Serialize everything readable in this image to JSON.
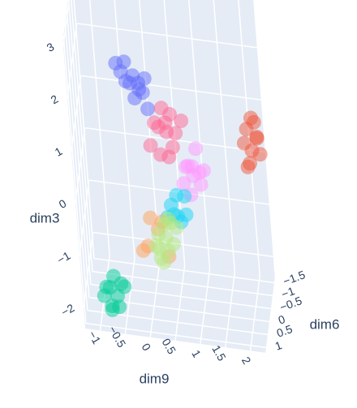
{
  "chart_data": {
    "type": "scatter3d",
    "xlabel": "dim9",
    "ylabel": "dim6",
    "zlabel": "dim3",
    "xlim": [
      -1.3,
      2.3
    ],
    "ylim": [
      -1.7,
      1.2
    ],
    "zlim": [
      -2.4,
      3.1
    ],
    "xticks": [
      {
        "value": -1,
        "label": "−1"
      },
      {
        "value": -0.5,
        "label": "−0.5"
      },
      0,
      0.5,
      1,
      1.5,
      2
    ],
    "yticks": [
      {
        "value": -1.5,
        "label": "−1.5"
      },
      {
        "value": -1,
        "label": "−1"
      },
      {
        "value": -0.5,
        "label": "−0.5"
      },
      0,
      0.5,
      1
    ],
    "zticks": [
      {
        "value": -2,
        "label": "−2"
      },
      {
        "value": -1,
        "label": "−1"
      },
      0,
      1,
      2,
      3
    ],
    "grid": true,
    "opacity": 0.5,
    "series": [
      {
        "color": "#00cc96",
        "x": [
          -0.9,
          -0.7,
          -0.8,
          -0.6,
          -0.85,
          -0.65,
          -0.75,
          -0.95,
          -0.55,
          -0.8
        ],
        "y": [
          0.3,
          0.2,
          0.4,
          0.3,
          0.1,
          0.5,
          0.25,
          0.35,
          0.2,
          0.45
        ],
        "z": [
          -2.0,
          -2.2,
          -2.3,
          -1.9,
          -2.1,
          -2.25,
          -1.8,
          -2.15,
          -2.0,
          -2.35
        ]
      },
      {
        "color": "#EF553B",
        "x": [
          2.0,
          2.1,
          2.2,
          2.05,
          2.15,
          1.95,
          2.25,
          2.1,
          2.0,
          2.2
        ],
        "y": [
          -1.3,
          -1.1,
          -1.25,
          -1.0,
          -1.4,
          -1.15,
          -1.2,
          -1.35,
          -1.05,
          -1.3
        ],
        "z": [
          0.6,
          0.3,
          0.5,
          0.1,
          0.7,
          0.4,
          0.2,
          0.8,
          0.0,
          0.45
        ]
      },
      {
        "color": "#636efa",
        "x": [
          -0.3,
          -0.1,
          0.1,
          -0.2,
          0.0,
          -0.4,
          0.2,
          -0.15,
          0.05,
          -0.25,
          0.15,
          -0.05
        ],
        "y": [
          0.1,
          -0.2,
          0.0,
          0.3,
          -0.3,
          0.0,
          0.2,
          -0.1,
          0.25,
          -0.25,
          -0.05,
          0.15
        ],
        "z": [
          2.1,
          1.9,
          1.7,
          2.4,
          1.6,
          2.2,
          1.5,
          1.8,
          2.0,
          1.75,
          1.95,
          1.65
        ]
      },
      {
        "color": "#FF6692",
        "x": [
          0.3,
          0.5,
          0.7,
          0.4,
          0.6,
          0.2,
          0.8,
          0.45,
          0.55,
          0.35,
          0.65,
          0.5
        ],
        "y": [
          0.1,
          -0.2,
          0.0,
          0.3,
          -0.1,
          0.2,
          -0.3,
          0.0,
          0.15,
          -0.15,
          0.25,
          -0.05
        ],
        "z": [
          1.2,
          0.9,
          1.0,
          0.7,
          1.3,
          0.8,
          1.1,
          1.45,
          0.6,
          1.0,
          0.85,
          1.15
        ]
      },
      {
        "color": "#FF97FF",
        "x": [
          0.9,
          1.1,
          1.0,
          0.8,
          1.2,
          0.95,
          1.05,
          0.85,
          1.15,
          1.0
        ],
        "y": [
          0.0,
          -0.2,
          0.2,
          0.1,
          -0.1,
          0.3,
          -0.3,
          -0.05,
          0.15,
          0.05
        ],
        "z": [
          0.4,
          0.2,
          0.5,
          0.1,
          0.3,
          0.0,
          0.6,
          0.35,
          0.15,
          0.25
        ]
      },
      {
        "color": "#19d3f3",
        "x": [
          0.5,
          0.7,
          0.6,
          0.8,
          0.4,
          0.65,
          0.75,
          0.55
        ],
        "y": [
          0.0,
          0.2,
          -0.2,
          0.1,
          -0.1,
          0.3,
          -0.3,
          0.05
        ],
        "z": [
          -0.4,
          -0.6,
          -0.3,
          -0.5,
          -0.7,
          -0.45,
          -0.35,
          -0.55
        ]
      },
      {
        "color": "#FFA15A",
        "x": [
          0.0,
          0.3,
          0.1,
          0.4,
          0.2,
          -0.1
        ],
        "y": [
          0.3,
          0.1,
          0.4,
          0.2,
          0.0,
          0.3
        ],
        "z": [
          -1.1,
          -0.7,
          -0.5,
          -1.3,
          -0.9,
          -1.2
        ]
      },
      {
        "color": "#B6E880",
        "x": [
          0.2,
          0.4,
          0.3,
          0.5,
          0.25,
          0.45,
          0.35,
          0.15,
          0.55,
          0.3,
          0.4,
          0.2
        ],
        "y": [
          0.0,
          0.2,
          -0.2,
          0.1,
          0.3,
          -0.1,
          0.0,
          0.15,
          -0.25,
          0.25,
          -0.15,
          0.05
        ],
        "z": [
          -1.0,
          -1.2,
          -0.9,
          -1.1,
          -1.3,
          -0.8,
          -1.05,
          -1.15,
          -0.95,
          -1.4,
          -0.75,
          -1.25
        ]
      }
    ]
  }
}
